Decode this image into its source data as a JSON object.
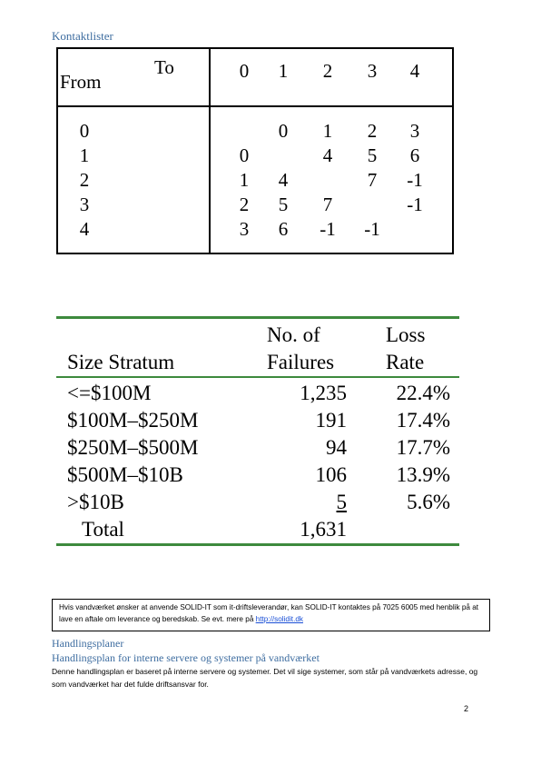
{
  "headings": {
    "kontaktlister": "Kontaktlister",
    "handlingsplaner": "Handlingsplaner",
    "handlingsplan_sub": "Handlingsplan for interne servere og systemer på vandværket"
  },
  "matrix": {
    "to_label": "To",
    "from_label": "From",
    "col_headers": [
      "0",
      "1",
      "2",
      "3",
      "4"
    ],
    "row_headers": [
      "0",
      "1",
      "2",
      "3",
      "4"
    ],
    "rows": [
      [
        "",
        "0",
        "1",
        "2",
        "3"
      ],
      [
        "0",
        "",
        "4",
        "5",
        "6"
      ],
      [
        "1",
        "4",
        "",
        "7",
        "-1"
      ],
      [
        "2",
        "5",
        "7",
        "",
        "-1"
      ],
      [
        "3",
        "6",
        "-1",
        "-1",
        ""
      ]
    ]
  },
  "failures_table": {
    "headers": {
      "col1": "Size Stratum",
      "col2_line1": "No. of",
      "col2_line2": "Failures",
      "col3_line1": "Loss",
      "col3_line2": "Rate"
    },
    "rows": [
      {
        "stratum": "<=$100M",
        "failures": "1,235",
        "loss_rate": "22.4%"
      },
      {
        "stratum": "$100M–$250M",
        "failures": "191",
        "loss_rate": "17.4%"
      },
      {
        "stratum": "$250M–$500M",
        "failures": "94",
        "loss_rate": "17.7%"
      },
      {
        "stratum": "$500M–$10B",
        "failures": "106",
        "loss_rate": "13.9%"
      },
      {
        "stratum": ">$10B",
        "failures": "5",
        "loss_rate": "5.6%"
      }
    ],
    "total_label": "Total",
    "total_failures": "1,631",
    "rule_color": "#3d8a3d"
  },
  "infobox": {
    "text": "Hvis vandværket ønsker at anvende SOLID-IT som it-driftsleverandør, kan SOLID-IT kontaktes på 7025 6005 med henblik på at lave en aftale om leverance og beredskab. Se evt. mere på ",
    "link_text": "http://solidit.dk"
  },
  "body_text": "Denne handlingsplan er baseret på interne servere og systemer. Det vil sige systemer, som står på vandværkets adresse, og som vandværket har det fulde driftsansvar for.",
  "page_number": "2",
  "colors": {
    "heading": "#3e6da0",
    "link": "#1a4fd6"
  }
}
